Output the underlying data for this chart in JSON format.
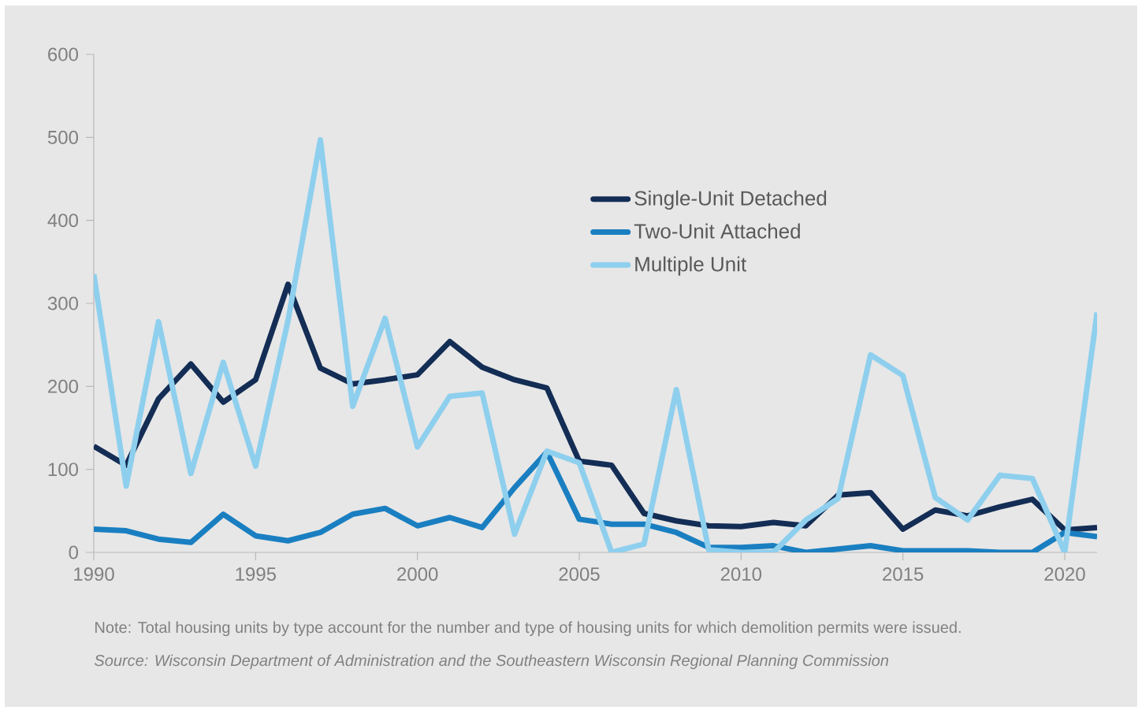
{
  "chart_data": {
    "type": "line",
    "x": [
      1990,
      1991,
      1992,
      1993,
      1994,
      1995,
      1996,
      1997,
      1998,
      1999,
      2000,
      2001,
      2002,
      2003,
      2004,
      2005,
      2006,
      2007,
      2008,
      2009,
      2010,
      2011,
      2012,
      2013,
      2014,
      2015,
      2016,
      2017,
      2018,
      2019,
      2020,
      2021
    ],
    "series": [
      {
        "name": "Single-Unit Detached",
        "color": "#132d55",
        "values": [
          128,
          105,
          185,
          227,
          181,
          208,
          323,
          222,
          203,
          208,
          214,
          254,
          223,
          208,
          198,
          110,
          105,
          47,
          38,
          32,
          31,
          36,
          32,
          69,
          72,
          28,
          51,
          44,
          55,
          64,
          27,
          30
        ]
      },
      {
        "name": "Two-Unit Attached",
        "color": "#1a7fc1",
        "values": [
          28,
          26,
          16,
          12,
          46,
          20,
          14,
          24,
          46,
          53,
          32,
          42,
          30,
          78,
          121,
          40,
          34,
          34,
          24,
          6,
          6,
          8,
          0,
          4,
          8,
          2,
          2,
          2,
          0,
          0,
          24,
          19
        ]
      },
      {
        "name": "Multiple Unit",
        "color": "#8ecfee",
        "values": [
          335,
          80,
          278,
          95,
          229,
          104,
          279,
          497,
          176,
          282,
          127,
          188,
          192,
          22,
          122,
          108,
          0,
          10,
          196,
          3,
          0,
          0,
          39,
          65,
          238,
          213,
          66,
          39,
          93,
          89,
          0,
          289
        ]
      }
    ],
    "xlim": [
      1990,
      2021
    ],
    "ylim": [
      0,
      600
    ],
    "xticks": [
      1990,
      1995,
      2000,
      2005,
      2010,
      2015,
      2020
    ],
    "yticks": [
      0,
      100,
      200,
      300,
      400,
      500,
      600
    ],
    "legend": "top right",
    "marker": "none",
    "line_style": "solid",
    "annotations": [
      "Note: Total housing units by type account for the number and type of housing units for which demolition permits were issued.",
      "Source: Wisconsin Department of Administration and the Southeastern Wisconsin Regional Planning Commission"
    ]
  }
}
